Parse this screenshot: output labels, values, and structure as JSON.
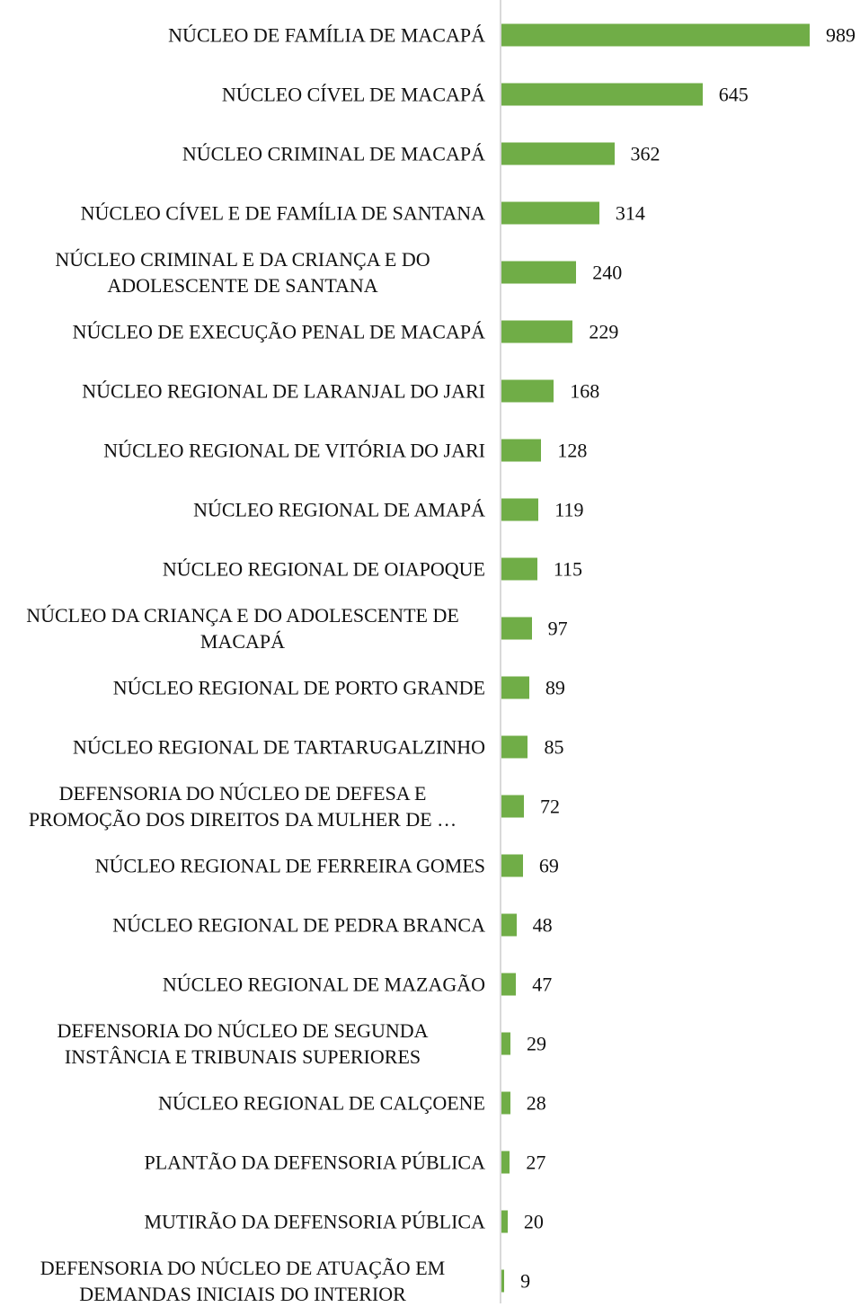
{
  "chart_data": {
    "type": "barh",
    "color": "#70ad47",
    "categories": [
      "NÚCLEO DE FAMÍLIA DE MACAPÁ",
      "NÚCLEO CÍVEL DE MACAPÁ",
      "NÚCLEO CRIMINAL DE MACAPÁ",
      "NÚCLEO CÍVEL E DE FAMÍLIA DE SANTANA",
      "NÚCLEO CRIMINAL E DA CRIANÇA E DO\nADOLESCENTE DE SANTANA",
      "NÚCLEO DE EXECUÇÃO PENAL DE MACAPÁ",
      "NÚCLEO REGIONAL DE LARANJAL DO JARI",
      "NÚCLEO REGIONAL DE VITÓRIA DO JARI",
      "NÚCLEO REGIONAL DE AMAPÁ",
      "NÚCLEO REGIONAL DE OIAPOQUE",
      "NÚCLEO DA CRIANÇA E DO ADOLESCENTE DE\nMACAPÁ",
      "NÚCLEO REGIONAL DE PORTO GRANDE",
      "NÚCLEO REGIONAL DE TARTARUGALZINHO",
      "DEFENSORIA DO NÚCLEO DE DEFESA E\nPROMOÇÃO DOS DIREITOS DA MULHER DE …",
      "NÚCLEO REGIONAL DE FERREIRA GOMES",
      "NÚCLEO REGIONAL DE PEDRA BRANCA",
      "NÚCLEO REGIONAL DE MAZAGÃO",
      "DEFENSORIA DO NÚCLEO DE SEGUNDA\nINSTÂNCIA E TRIBUNAIS SUPERIORES",
      "NÚCLEO REGIONAL DE CALÇOENE",
      "PLANTÃO DA DEFENSORIA PÚBLICA",
      "MUTIRÃO DA DEFENSORIA PÚBLICA",
      "DEFENSORIA DO NÚCLEO DE ATUAÇÃO EM\nDEMANDAS INICIAIS DO INTERIOR"
    ],
    "values": [
      989,
      645,
      362,
      314,
      240,
      229,
      168,
      128,
      119,
      115,
      97,
      89,
      85,
      72,
      69,
      48,
      47,
      29,
      28,
      27,
      20,
      9
    ]
  }
}
